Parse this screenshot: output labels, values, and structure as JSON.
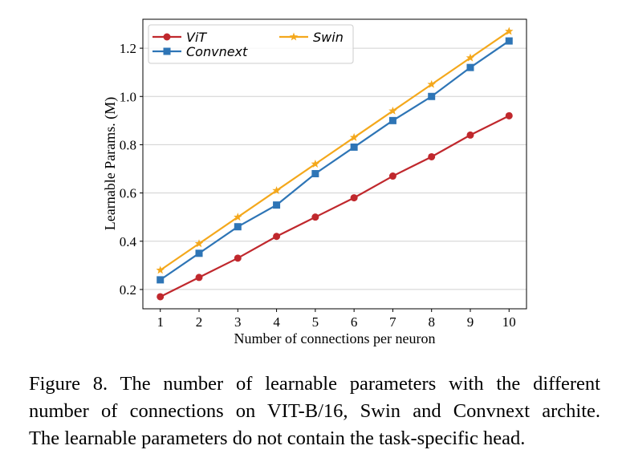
{
  "chart_data": {
    "type": "line",
    "xlabel": "Number of connections per neuron",
    "ylabel": "Learnable Params. (M)",
    "x": [
      1,
      2,
      3,
      4,
      5,
      6,
      7,
      8,
      9,
      10
    ],
    "xlim": [
      0.55,
      10.45
    ],
    "ylim": [
      0.12,
      1.32
    ],
    "yticks": [
      0.2,
      0.4,
      0.6,
      0.8,
      1.0,
      1.2
    ],
    "ytick_labels": [
      "0.2",
      "0.4",
      "0.6",
      "0.8",
      "1.0",
      "1.2"
    ],
    "xtick_labels": [
      "1",
      "2",
      "3",
      "4",
      "5",
      "6",
      "7",
      "8",
      "9",
      "10"
    ],
    "grid": "horizontal",
    "legend_position": "top-left",
    "series": [
      {
        "name": "ViT",
        "color": "#c0282d",
        "marker": "circle",
        "values": [
          0.17,
          0.25,
          0.33,
          0.42,
          0.5,
          0.58,
          0.67,
          0.75,
          0.84,
          0.92
        ]
      },
      {
        "name": "Swin",
        "color": "#f4a81c",
        "marker": "star",
        "values": [
          0.28,
          0.39,
          0.5,
          0.61,
          0.72,
          0.83,
          0.94,
          1.05,
          1.16,
          1.27
        ]
      },
      {
        "name": "Convnext",
        "color": "#2e75b6",
        "marker": "square",
        "values": [
          0.24,
          0.35,
          0.46,
          0.55,
          0.68,
          0.79,
          0.9,
          1.0,
          1.12,
          1.23
        ]
      }
    ]
  },
  "caption": {
    "line1": "Figure 8.  The number of learnable parameters with the different",
    "line2": "number of connections on VIT-B/16, Swin and Convnext archite.",
    "line3": "The learnable parameters do not contain the task-specific head."
  }
}
